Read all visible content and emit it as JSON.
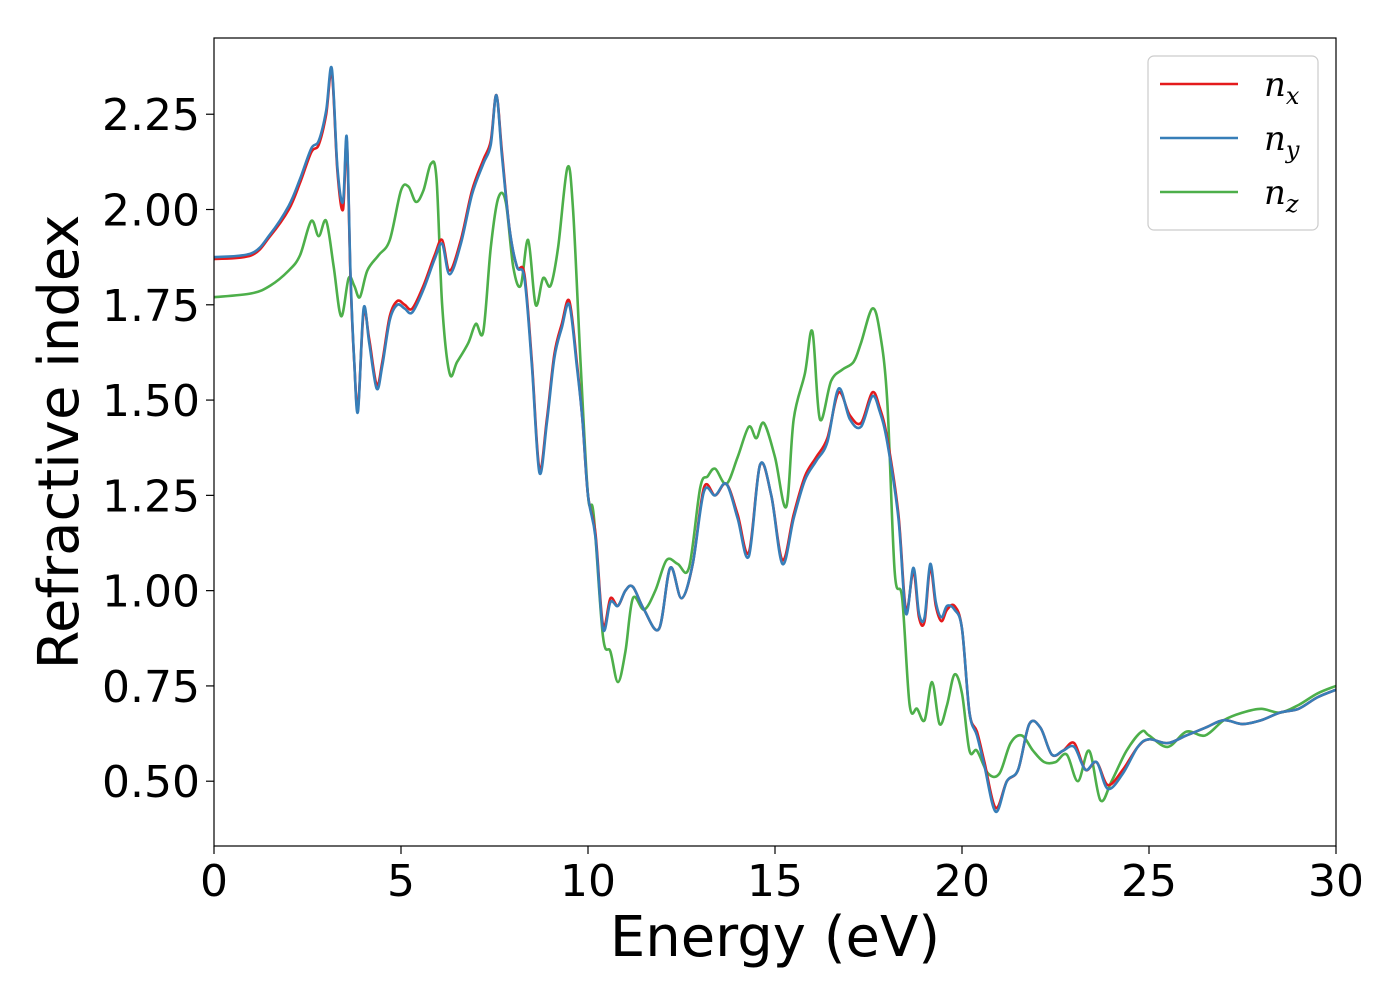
{
  "chart_data": {
    "type": "line",
    "title": "",
    "xlabel": "Energy (eV)",
    "ylabel": "Refractive index",
    "xlim": [
      0,
      30
    ],
    "ylim": [
      0.33,
      2.45
    ],
    "xticks": [
      0,
      5,
      10,
      15,
      20,
      25,
      30
    ],
    "xtick_labels": [
      "0",
      "5",
      "10",
      "15",
      "20",
      "25",
      "30"
    ],
    "yticks": [
      0.5,
      0.75,
      1.0,
      1.25,
      1.5,
      1.75,
      2.0,
      2.25
    ],
    "ytick_labels": [
      "0.50",
      "0.75",
      "1.00",
      "1.25",
      "1.50",
      "1.75",
      "2.00",
      "2.25"
    ],
    "grid": false,
    "legend_position": "top-right",
    "series": [
      {
        "name": "n",
        "subscript": "x",
        "color": "#e41a1c",
        "x": [
          0,
          1,
          1.5,
          2,
          2.3,
          2.6,
          2.8,
          3.0,
          3.15,
          3.3,
          3.45,
          3.55,
          3.65,
          3.75,
          3.85,
          4.0,
          4.15,
          4.35,
          4.5,
          4.7,
          4.9,
          5.1,
          5.3,
          5.6,
          5.9,
          6.1,
          6.3,
          6.6,
          6.9,
          7.2,
          7.4,
          7.55,
          7.7,
          7.9,
          8.1,
          8.3,
          8.5,
          8.7,
          8.9,
          9.1,
          9.3,
          9.5,
          9.7,
          9.85,
          10.0,
          10.2,
          10.4,
          10.6,
          10.8,
          11.0,
          11.2,
          11.5,
          11.9,
          12.2,
          12.5,
          12.8,
          13.1,
          13.4,
          13.7,
          14.0,
          14.3,
          14.6,
          14.9,
          15.2,
          15.5,
          15.8,
          16.1,
          16.4,
          16.7,
          17.0,
          17.3,
          17.6,
          17.8,
          18.0,
          18.3,
          18.5,
          18.7,
          18.85,
          19.0,
          19.15,
          19.3,
          19.45,
          19.6,
          19.8,
          20.0,
          20.2,
          20.4,
          20.6,
          20.9,
          21.2,
          21.5,
          21.8,
          22.1,
          22.4,
          22.7,
          23.0,
          23.3,
          23.6,
          23.9,
          24.3,
          24.7,
          25.0,
          25.5,
          26.0,
          26.5,
          27.0,
          27.5,
          28.0,
          28.5,
          29.0,
          29.5,
          30.0
        ],
        "y": [
          1.87,
          1.88,
          1.93,
          2.0,
          2.07,
          2.15,
          2.17,
          2.25,
          2.36,
          2.1,
          2.0,
          2.18,
          1.82,
          1.6,
          1.48,
          1.73,
          1.66,
          1.54,
          1.6,
          1.72,
          1.76,
          1.75,
          1.74,
          1.8,
          1.88,
          1.92,
          1.84,
          1.92,
          2.05,
          2.13,
          2.18,
          2.3,
          2.15,
          1.95,
          1.85,
          1.83,
          1.6,
          1.32,
          1.45,
          1.62,
          1.7,
          1.76,
          1.6,
          1.45,
          1.25,
          1.15,
          0.91,
          0.98,
          0.96,
          1.0,
          1.01,
          0.95,
          0.9,
          1.06,
          0.98,
          1.07,
          1.27,
          1.25,
          1.28,
          1.2,
          1.1,
          1.33,
          1.25,
          1.08,
          1.2,
          1.3,
          1.35,
          1.4,
          1.52,
          1.46,
          1.44,
          1.52,
          1.48,
          1.4,
          1.2,
          0.95,
          1.05,
          0.93,
          0.92,
          1.06,
          0.96,
          0.92,
          0.95,
          0.96,
          0.9,
          0.68,
          0.63,
          0.55,
          0.43,
          0.5,
          0.53,
          0.65,
          0.64,
          0.57,
          0.58,
          0.6,
          0.53,
          0.55,
          0.49,
          0.53,
          0.59,
          0.61,
          0.6,
          0.62,
          0.64,
          0.66,
          0.65,
          0.66,
          0.68,
          0.69,
          0.72,
          0.74
        ]
      },
      {
        "name": "n",
        "subscript": "y",
        "color": "#377eb8",
        "x": [
          0,
          1,
          1.5,
          2,
          2.3,
          2.6,
          2.8,
          3.0,
          3.15,
          3.3,
          3.45,
          3.55,
          3.65,
          3.75,
          3.85,
          4.0,
          4.15,
          4.35,
          4.5,
          4.7,
          4.9,
          5.1,
          5.3,
          5.6,
          5.9,
          6.1,
          6.3,
          6.6,
          6.9,
          7.2,
          7.4,
          7.55,
          7.7,
          7.9,
          8.1,
          8.3,
          8.5,
          8.7,
          8.9,
          9.1,
          9.3,
          9.5,
          9.7,
          9.85,
          10.0,
          10.2,
          10.4,
          10.6,
          10.8,
          11.0,
          11.2,
          11.5,
          11.9,
          12.2,
          12.5,
          12.8,
          13.1,
          13.4,
          13.7,
          14.0,
          14.3,
          14.6,
          14.9,
          15.2,
          15.5,
          15.8,
          16.1,
          16.4,
          16.7,
          17.0,
          17.3,
          17.6,
          17.8,
          18.0,
          18.3,
          18.5,
          18.7,
          18.85,
          19.0,
          19.15,
          19.3,
          19.45,
          19.6,
          19.8,
          20.0,
          20.2,
          20.4,
          20.6,
          20.9,
          21.2,
          21.5,
          21.8,
          22.1,
          22.4,
          22.7,
          23.0,
          23.3,
          23.6,
          23.9,
          24.3,
          24.7,
          25.0,
          25.5,
          26.0,
          26.5,
          27.0,
          27.5,
          28.0,
          28.5,
          29.0,
          29.5,
          30.0
        ],
        "y": [
          1.875,
          1.885,
          1.935,
          2.01,
          2.08,
          2.16,
          2.18,
          2.26,
          2.37,
          2.11,
          2.02,
          2.19,
          1.83,
          1.6,
          1.47,
          1.74,
          1.65,
          1.53,
          1.59,
          1.71,
          1.75,
          1.74,
          1.73,
          1.79,
          1.87,
          1.91,
          1.83,
          1.91,
          2.04,
          2.12,
          2.17,
          2.3,
          2.14,
          1.95,
          1.85,
          1.82,
          1.59,
          1.31,
          1.44,
          1.61,
          1.69,
          1.75,
          1.59,
          1.45,
          1.25,
          1.14,
          0.9,
          0.97,
          0.96,
          1.0,
          1.01,
          0.95,
          0.9,
          1.06,
          0.98,
          1.07,
          1.26,
          1.25,
          1.28,
          1.19,
          1.09,
          1.33,
          1.25,
          1.07,
          1.19,
          1.29,
          1.34,
          1.39,
          1.53,
          1.45,
          1.43,
          1.51,
          1.47,
          1.39,
          1.19,
          0.94,
          1.06,
          0.94,
          0.93,
          1.07,
          0.97,
          0.93,
          0.96,
          0.95,
          0.9,
          0.68,
          0.62,
          0.54,
          0.42,
          0.5,
          0.53,
          0.65,
          0.64,
          0.57,
          0.58,
          0.59,
          0.53,
          0.55,
          0.48,
          0.52,
          0.59,
          0.61,
          0.6,
          0.62,
          0.64,
          0.66,
          0.65,
          0.66,
          0.68,
          0.69,
          0.72,
          0.74
        ]
      },
      {
        "name": "n",
        "subscript": "z",
        "color": "#4daf4a",
        "x": [
          0,
          1,
          1.5,
          2,
          2.3,
          2.6,
          2.8,
          3.0,
          3.2,
          3.4,
          3.6,
          3.75,
          3.9,
          4.1,
          4.4,
          4.7,
          5.0,
          5.2,
          5.4,
          5.6,
          5.8,
          5.95,
          6.1,
          6.3,
          6.5,
          6.8,
          7.0,
          7.2,
          7.4,
          7.6,
          7.8,
          8.0,
          8.2,
          8.4,
          8.6,
          8.8,
          9.0,
          9.2,
          9.45,
          9.6,
          9.8,
          10.0,
          10.15,
          10.4,
          10.6,
          10.8,
          11.0,
          11.2,
          11.5,
          11.8,
          12.1,
          12.4,
          12.7,
          13.0,
          13.2,
          13.4,
          13.7,
          14.0,
          14.3,
          14.5,
          14.7,
          15.0,
          15.3,
          15.5,
          15.8,
          16.0,
          16.2,
          16.5,
          16.8,
          17.1,
          17.3,
          17.6,
          17.8,
          18.0,
          18.2,
          18.4,
          18.6,
          18.8,
          19.0,
          19.2,
          19.4,
          19.6,
          19.8,
          20.0,
          20.2,
          20.4,
          20.7,
          21.0,
          21.3,
          21.6,
          21.9,
          22.2,
          22.5,
          22.8,
          23.1,
          23.4,
          23.7,
          24.0,
          24.4,
          24.8,
          25.0,
          25.5,
          26.0,
          26.5,
          27.0,
          27.5,
          28.0,
          28.5,
          29.0,
          29.5,
          30.0
        ],
        "y": [
          1.77,
          1.78,
          1.8,
          1.84,
          1.88,
          1.97,
          1.93,
          1.97,
          1.85,
          1.72,
          1.82,
          1.8,
          1.77,
          1.84,
          1.88,
          1.92,
          2.05,
          2.06,
          2.02,
          2.05,
          2.12,
          2.08,
          1.75,
          1.57,
          1.6,
          1.65,
          1.7,
          1.68,
          1.9,
          2.03,
          2.02,
          1.85,
          1.8,
          1.92,
          1.75,
          1.82,
          1.8,
          1.9,
          2.11,
          2.0,
          1.6,
          1.25,
          1.2,
          0.88,
          0.84,
          0.76,
          0.84,
          0.98,
          0.95,
          1.0,
          1.08,
          1.07,
          1.06,
          1.27,
          1.3,
          1.32,
          1.28,
          1.35,
          1.43,
          1.4,
          1.44,
          1.35,
          1.22,
          1.45,
          1.57,
          1.68,
          1.45,
          1.55,
          1.58,
          1.6,
          1.65,
          1.74,
          1.68,
          1.5,
          1.05,
          0.98,
          0.7,
          0.69,
          0.66,
          0.76,
          0.65,
          0.7,
          0.78,
          0.73,
          0.58,
          0.58,
          0.52,
          0.52,
          0.6,
          0.62,
          0.58,
          0.55,
          0.55,
          0.57,
          0.5,
          0.58,
          0.45,
          0.5,
          0.58,
          0.63,
          0.62,
          0.59,
          0.63,
          0.62,
          0.66,
          0.68,
          0.69,
          0.68,
          0.7,
          0.73,
          0.75
        ]
      }
    ]
  }
}
